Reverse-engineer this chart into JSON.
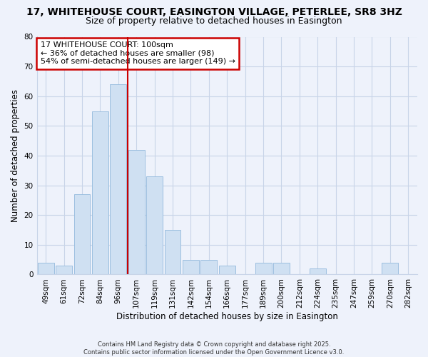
{
  "title": "17, WHITEHOUSE COURT, EASINGTON VILLAGE, PETERLEE, SR8 3HZ",
  "subtitle": "Size of property relative to detached houses in Easington",
  "xlabel": "Distribution of detached houses by size in Easington",
  "ylabel": "Number of detached properties",
  "bar_labels": [
    "49sqm",
    "61sqm",
    "72sqm",
    "84sqm",
    "96sqm",
    "107sqm",
    "119sqm",
    "131sqm",
    "142sqm",
    "154sqm",
    "166sqm",
    "177sqm",
    "189sqm",
    "200sqm",
    "212sqm",
    "224sqm",
    "235sqm",
    "247sqm",
    "259sqm",
    "270sqm",
    "282sqm"
  ],
  "bar_values": [
    4,
    3,
    27,
    55,
    64,
    42,
    33,
    15,
    5,
    5,
    3,
    0,
    4,
    4,
    0,
    2,
    0,
    0,
    0,
    4,
    0
  ],
  "bar_color": "#cfe0f2",
  "bar_edge_color": "#9cbfe0",
  "vline_x": 4.5,
  "vline_color": "#cc0000",
  "ylim": [
    0,
    80
  ],
  "yticks": [
    0,
    10,
    20,
    30,
    40,
    50,
    60,
    70,
    80
  ],
  "annotation_title": "17 WHITEHOUSE COURT: 100sqm",
  "annotation_line1": "← 36% of detached houses are smaller (98)",
  "annotation_line2": "54% of semi-detached houses are larger (149) →",
  "annotation_box_color": "#ffffff",
  "annotation_box_edge": "#cc0000",
  "footer1": "Contains HM Land Registry data © Crown copyright and database right 2025.",
  "footer2": "Contains public sector information licensed under the Open Government Licence v3.0.",
  "bg_color": "#eef2fb",
  "plot_bg_color": "#eef2fb",
  "grid_color": "#c8d4e8",
  "title_fontsize": 10,
  "subtitle_fontsize": 9,
  "axis_label_fontsize": 8.5,
  "tick_fontsize": 7.5,
  "annotation_fontsize": 8
}
